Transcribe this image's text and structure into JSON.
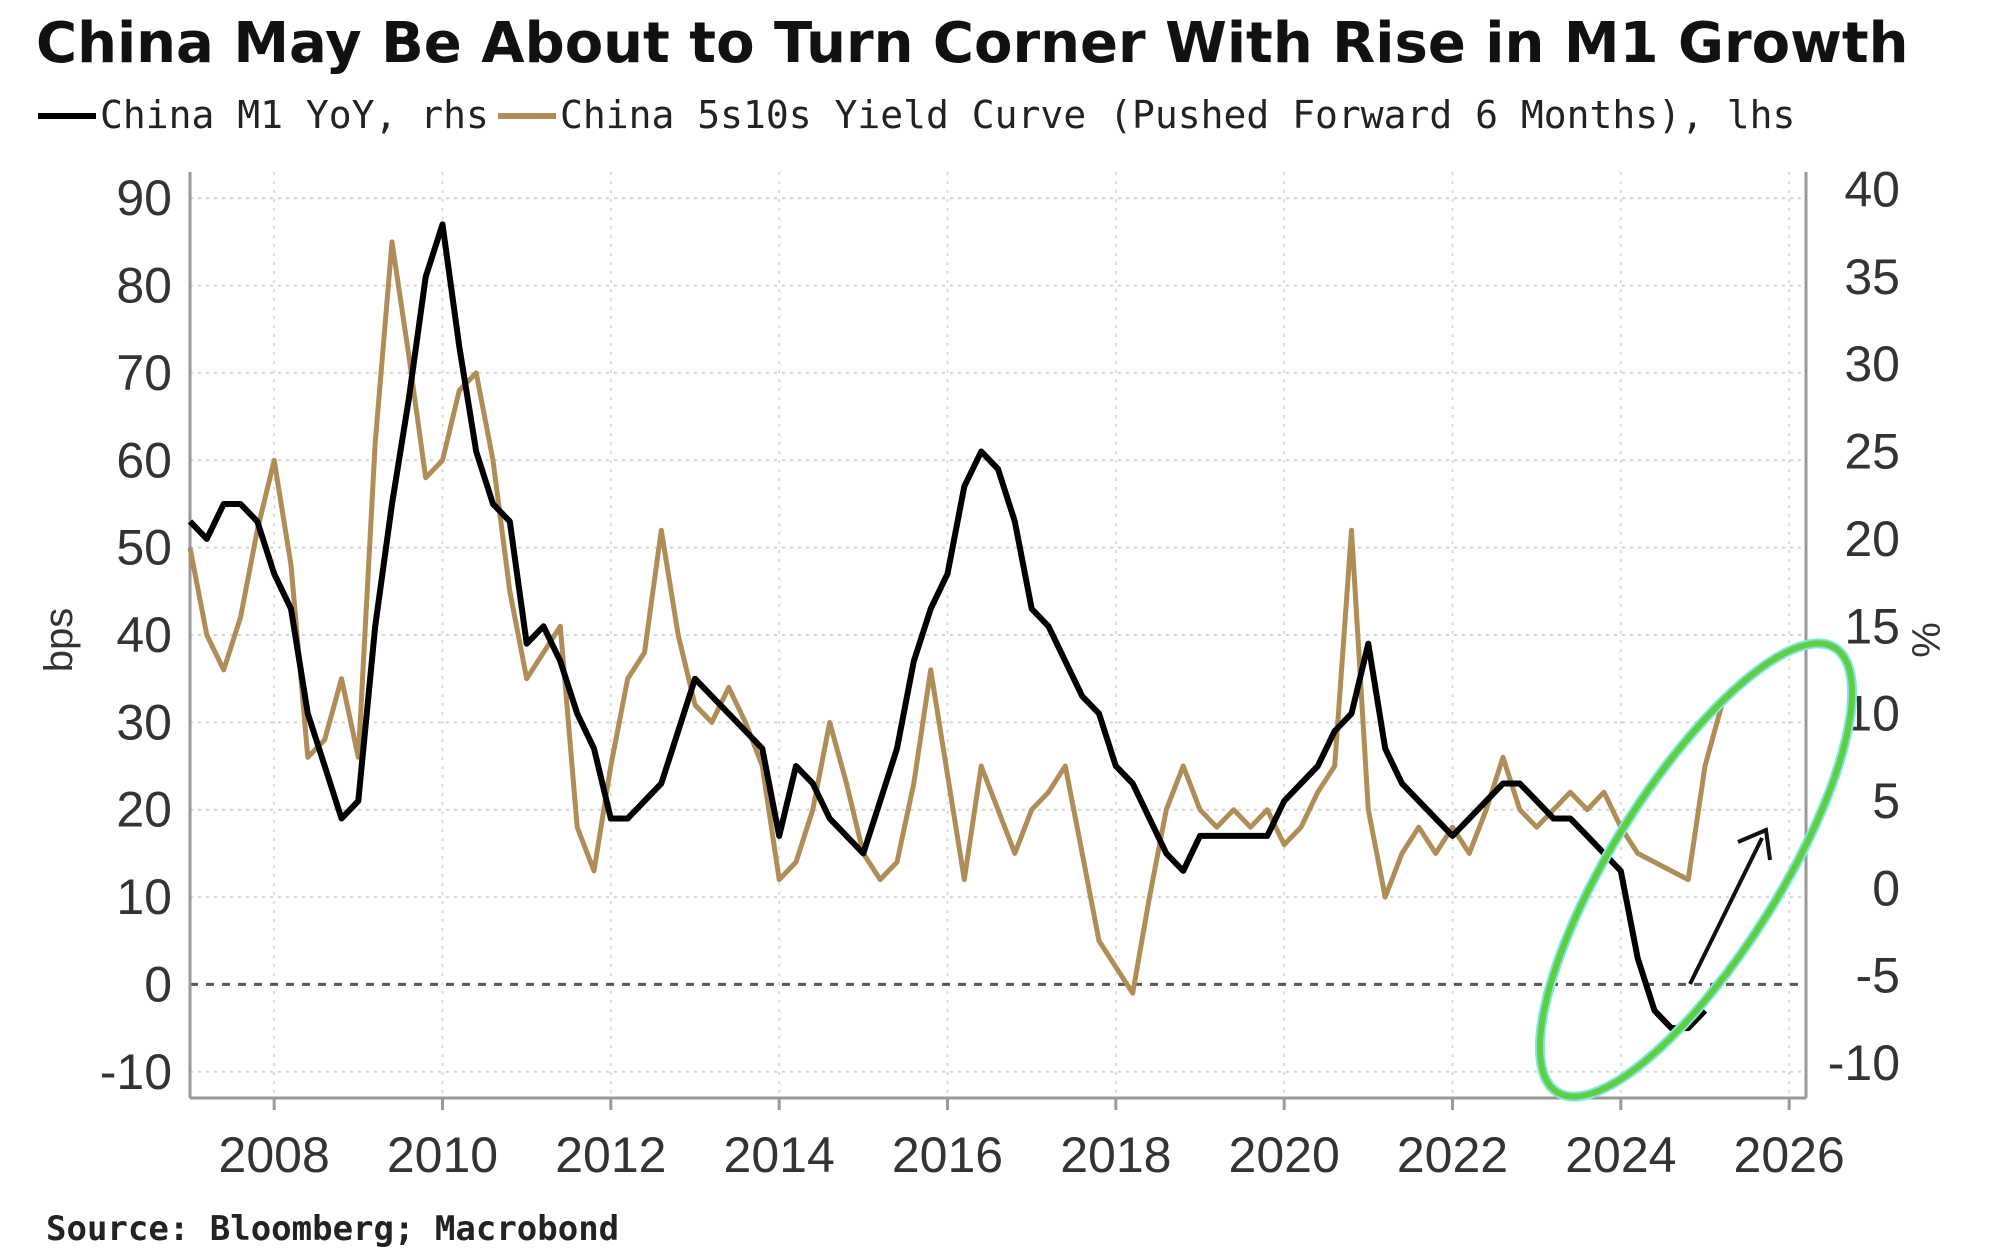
{
  "chart_data": {
    "type": "line",
    "title": "China May Be About to Turn Corner With Rise in M1 Growth",
    "source": "Source: Bloomberg; Macrobond",
    "legend": [
      {
        "label": "China M1 YoY, rhs",
        "color": "#000000"
      },
      {
        "label": "China 5s10s Yield Curve (Pushed Forward 6 Months), lhs",
        "color": "#b08d57"
      }
    ],
    "left_axis": {
      "label": "bps",
      "range": [
        -13,
        93
      ],
      "ticks": [
        "90",
        "80",
        "70",
        "60",
        "50",
        "40",
        "30",
        "20",
        "10",
        "0",
        "-10"
      ]
    },
    "right_axis": {
      "label": "%",
      "range": [
        -12,
        41
      ],
      "ticks": [
        "40",
        "35",
        "30",
        "25",
        "20",
        "15",
        "10",
        "5",
        "0",
        "-5",
        "-10"
      ]
    },
    "x_axis": {
      "range": [
        2007.0,
        2026.2
      ],
      "ticks": [
        "2008",
        "2010",
        "2012",
        "2014",
        "2016",
        "2018",
        "2020",
        "2022",
        "2024",
        "2026"
      ]
    },
    "grid": true,
    "legend_position": "top",
    "series": [
      {
        "name": "China M1 YoY, rhs",
        "axis": "right",
        "color": "#000000",
        "x": [
          2007.0,
          2007.2,
          2007.4,
          2007.6,
          2007.8,
          2008.0,
          2008.2,
          2008.4,
          2008.6,
          2008.8,
          2009.0,
          2009.2,
          2009.4,
          2009.6,
          2009.8,
          2010.0,
          2010.2,
          2010.4,
          2010.6,
          2010.8,
          2011.0,
          2011.2,
          2011.4,
          2011.6,
          2011.8,
          2012.0,
          2012.2,
          2012.4,
          2012.6,
          2012.8,
          2013.0,
          2013.2,
          2013.4,
          2013.6,
          2013.8,
          2014.0,
          2014.2,
          2014.4,
          2014.6,
          2014.8,
          2015.0,
          2015.2,
          2015.4,
          2015.6,
          2015.8,
          2016.0,
          2016.2,
          2016.4,
          2016.6,
          2016.8,
          2017.0,
          2017.2,
          2017.4,
          2017.6,
          2017.8,
          2018.0,
          2018.2,
          2018.4,
          2018.6,
          2018.8,
          2019.0,
          2019.2,
          2019.4,
          2019.6,
          2019.8,
          2020.0,
          2020.2,
          2020.4,
          2020.6,
          2020.8,
          2021.0,
          2021.2,
          2021.4,
          2021.6,
          2021.8,
          2022.0,
          2022.2,
          2022.4,
          2022.6,
          2022.8,
          2023.0,
          2023.2,
          2023.4,
          2023.6,
          2023.8,
          2024.0,
          2024.2,
          2024.4,
          2024.6,
          2024.8,
          2025.0
        ],
        "values": [
          21,
          20,
          22,
          22,
          21,
          18,
          16,
          10,
          7,
          4,
          5,
          15,
          22,
          28,
          35,
          38,
          31,
          25,
          22,
          21,
          14,
          15,
          13,
          10,
          8,
          4,
          4,
          5,
          6,
          9,
          12,
          11,
          10,
          9,
          8,
          3,
          7,
          6,
          4,
          3,
          2,
          5,
          8,
          13,
          16,
          18,
          23,
          25,
          24,
          21,
          16,
          15,
          13,
          11,
          10,
          7,
          6,
          4,
          2,
          1,
          3,
          3,
          3,
          3,
          3,
          5,
          6,
          7,
          9,
          10,
          14,
          8,
          6,
          5,
          4,
          3,
          4,
          5,
          6,
          6,
          5,
          4,
          4,
          3,
          2,
          1,
          -4,
          -7,
          -8,
          -8,
          -7
        ]
      },
      {
        "name": "China 5s10s Yield Curve (Pushed Forward 6 Months), lhs",
        "axis": "left",
        "color": "#b08d57",
        "x": [
          2007.0,
          2007.2,
          2007.4,
          2007.6,
          2007.8,
          2008.0,
          2008.2,
          2008.4,
          2008.6,
          2008.8,
          2009.0,
          2009.2,
          2009.4,
          2009.6,
          2009.8,
          2010.0,
          2010.2,
          2010.4,
          2010.6,
          2010.8,
          2011.0,
          2011.2,
          2011.4,
          2011.6,
          2011.8,
          2012.0,
          2012.2,
          2012.4,
          2012.6,
          2012.8,
          2013.0,
          2013.2,
          2013.4,
          2013.6,
          2013.8,
          2014.0,
          2014.2,
          2014.4,
          2014.6,
          2014.8,
          2015.0,
          2015.2,
          2015.4,
          2015.6,
          2015.8,
          2016.0,
          2016.2,
          2016.4,
          2016.6,
          2016.8,
          2017.0,
          2017.2,
          2017.4,
          2017.6,
          2017.8,
          2018.0,
          2018.2,
          2018.4,
          2018.6,
          2018.8,
          2019.0,
          2019.2,
          2019.4,
          2019.6,
          2019.8,
          2020.0,
          2020.2,
          2020.4,
          2020.6,
          2020.8,
          2021.0,
          2021.2,
          2021.4,
          2021.6,
          2021.8,
          2022.0,
          2022.2,
          2022.4,
          2022.6,
          2022.8,
          2023.0,
          2023.2,
          2023.4,
          2023.6,
          2023.8,
          2024.0,
          2024.2,
          2024.4,
          2024.6,
          2024.8,
          2025.0,
          2025.2
        ],
        "values": [
          50,
          40,
          36,
          42,
          52,
          60,
          48,
          26,
          28,
          35,
          26,
          62,
          85,
          72,
          58,
          60,
          68,
          70,
          60,
          45,
          35,
          38,
          41,
          18,
          13,
          25,
          35,
          38,
          52,
          40,
          32,
          30,
          34,
          30,
          25,
          12,
          14,
          20,
          30,
          23,
          15,
          12,
          14,
          23,
          36,
          24,
          12,
          25,
          20,
          15,
          20,
          22,
          25,
          15,
          5,
          2,
          -1,
          10,
          20,
          25,
          20,
          18,
          20,
          18,
          20,
          16,
          18,
          22,
          25,
          52,
          20,
          10,
          15,
          18,
          15,
          18,
          15,
          20,
          26,
          20,
          18,
          20,
          22,
          20,
          22,
          18,
          15,
          14,
          13,
          12,
          25,
          32
        ]
      }
    ]
  }
}
